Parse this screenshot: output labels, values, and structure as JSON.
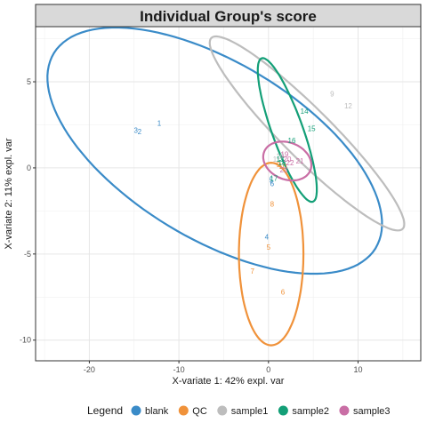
{
  "chart_data": {
    "type": "scatter",
    "title": "Individual Group's score",
    "xlabel": "X-variate 1: 42% expl. var",
    "ylabel": "X-variate 2: 11% expl. var",
    "xlim": [
      -26,
      17
    ],
    "ylim": [
      -11.2,
      8.2
    ],
    "xticks": [
      -20,
      -10,
      0,
      10
    ],
    "yticks": [
      -10,
      -5,
      0,
      5
    ],
    "grid": true,
    "legend": {
      "title": "Legend",
      "position": "bottom"
    },
    "series": [
      {
        "name": "blank",
        "color": "#3a8bc8",
        "points": [
          {
            "label": "1",
            "x": -12.2,
            "y": 2.6
          },
          {
            "label": "3",
            "x": -14.8,
            "y": 2.2
          },
          {
            "label": "2",
            "x": -14.4,
            "y": 2.1
          },
          {
            "label": "4",
            "x": -0.2,
            "y": -4.0
          },
          {
            "label": "5",
            "x": 0.3,
            "y": -0.7
          },
          {
            "label": "6",
            "x": 0.4,
            "y": -0.9
          }
        ],
        "ellipse": {
          "cx": -6.0,
          "cy": 1.0,
          "rx": 19.2,
          "ry": 5.6,
          "angle_deg": -14
        }
      },
      {
        "name": "QC",
        "color": "#f0923a",
        "points": [
          {
            "label": "8",
            "x": 0.4,
            "y": -2.1
          },
          {
            "label": "5",
            "x": 0.0,
            "y": -4.6
          },
          {
            "label": "7",
            "x": -1.8,
            "y": -6.0
          },
          {
            "label": "6",
            "x": 1.6,
            "y": -7.2
          },
          {
            "label": "9",
            "x": 1.1,
            "y": 0.2
          },
          {
            "label": "10",
            "x": 1.6,
            "y": 0.1
          }
        ],
        "ellipse": {
          "cx": 0.3,
          "cy": -5.0,
          "rx": 3.6,
          "ry": 5.3,
          "angle_deg": 0
        }
      },
      {
        "name": "sample1",
        "color": "#bdbdbd",
        "points": [
          {
            "label": "9",
            "x": 7.1,
            "y": 4.3
          },
          {
            "label": "12",
            "x": 8.9,
            "y": 3.6
          },
          {
            "label": "10",
            "x": 1.3,
            "y": 0.7
          },
          {
            "label": "11",
            "x": 0.9,
            "y": 0.5
          }
        ],
        "ellipse": {
          "cx": 4.3,
          "cy": 2.0,
          "rx": 12.1,
          "ry": 1.8,
          "angle_deg": -26.5
        }
      },
      {
        "name": "sample2",
        "color": "#139f77",
        "points": [
          {
            "label": "14",
            "x": 4.0,
            "y": 3.3
          },
          {
            "label": "15",
            "x": 4.8,
            "y": 2.3
          },
          {
            "label": "16",
            "x": 2.6,
            "y": 1.6
          },
          {
            "label": "13",
            "x": 1.3,
            "y": 0.5
          },
          {
            "label": "18",
            "x": 1.5,
            "y": 0.3
          },
          {
            "label": "17",
            "x": 0.6,
            "y": -0.6
          }
        ],
        "ellipse": {
          "cx": 2.1,
          "cy": 2.2,
          "rx": 5.1,
          "ry": 1.5,
          "angle_deg": -53
        }
      },
      {
        "name": "sample3",
        "color": "#c96ea5",
        "points": [
          {
            "label": "19",
            "x": 1.8,
            "y": 0.8
          },
          {
            "label": "20",
            "x": 2.1,
            "y": 0.5
          },
          {
            "label": "21",
            "x": 3.5,
            "y": 0.4
          },
          {
            "label": "22",
            "x": 2.4,
            "y": 0.3
          },
          {
            "label": "23",
            "x": 1.7,
            "y": -0.1
          }
        ],
        "ellipse": {
          "cx": 2.1,
          "cy": 0.4,
          "rx": 2.7,
          "ry": 1.1,
          "angle_deg": -6
        }
      }
    ]
  }
}
